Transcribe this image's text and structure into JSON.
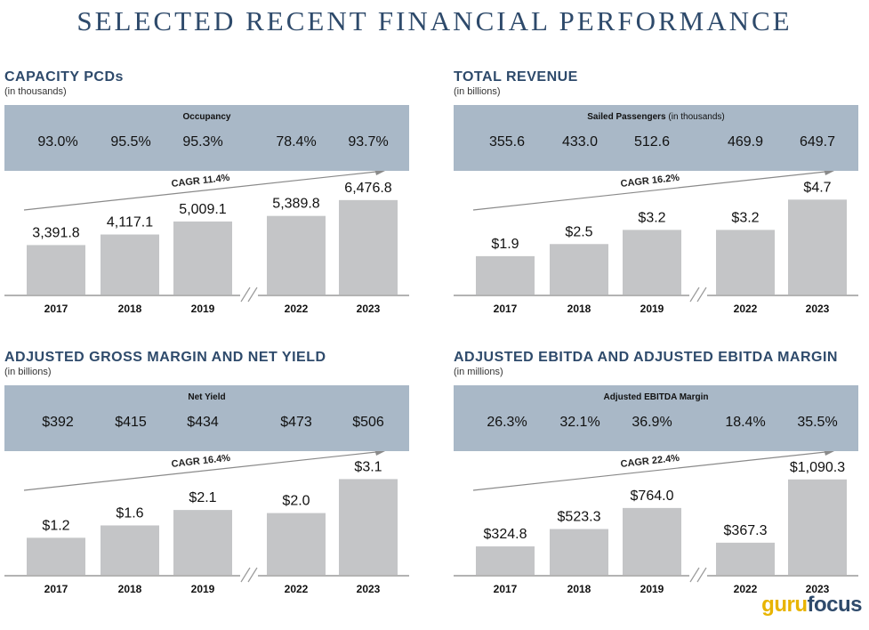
{
  "page": {
    "title": "SELECTED RECENT FINANCIAL PERFORMANCE",
    "watermark_part1": "guru",
    "watermark_part2": "focus"
  },
  "colors": {
    "title": "#2e4a6b",
    "band": "#a9b8c7",
    "bar": "#c4c5c7",
    "arrow": "#8a8a8a"
  },
  "chart_data": [
    {
      "type": "bar",
      "title": "CAPACITY PCDs",
      "subtitle": "(in thousands)",
      "band_title": "Occupancy",
      "band_title_suffix": "",
      "band_values": [
        "93.0%",
        "95.5%",
        "95.3%",
        "78.4%",
        "93.7%"
      ],
      "categories": [
        "2017",
        "2018",
        "2019",
        "2022",
        "2023"
      ],
      "values": [
        3391.8,
        4117.1,
        5009.1,
        5389.8,
        6476.8
      ],
      "labels": [
        "3,391.8",
        "4,117.1",
        "5,009.1",
        "5,389.8",
        "6,476.8"
      ],
      "cagr_label": "CAGR 11.4%",
      "axis_break": "between 2019 and 2022",
      "ylim": [
        0,
        7200
      ]
    },
    {
      "type": "bar",
      "title": "TOTAL REVENUE",
      "subtitle": "(in billions)",
      "band_title": "Sailed Passengers",
      "band_title_suffix": " (in thousands)",
      "band_values": [
        "355.6",
        "433.0",
        "512.6",
        "469.9",
        "649.7"
      ],
      "categories": [
        "2017",
        "2018",
        "2019",
        "2022",
        "2023"
      ],
      "values": [
        1.9,
        2.5,
        3.2,
        3.2,
        4.7
      ],
      "labels": [
        "$1.9",
        "$2.5",
        "$3.2",
        "$3.2",
        "$4.7"
      ],
      "cagr_label": "CAGR 16.2%",
      "axis_break": "between 2019 and 2022",
      "ylim": [
        0,
        5.2
      ]
    },
    {
      "type": "bar",
      "title": "ADJUSTED GROSS MARGIN AND NET YIELD",
      "subtitle": "(in billions)",
      "band_title": "Net Yield",
      "band_title_suffix": "",
      "band_values": [
        "$392",
        "$415",
        "$434",
        "$473",
        "$506"
      ],
      "categories": [
        "2017",
        "2018",
        "2019",
        "2022",
        "2023"
      ],
      "values": [
        1.2,
        1.6,
        2.1,
        2.0,
        3.1
      ],
      "labels": [
        "$1.2",
        "$1.6",
        "$2.1",
        "$2.0",
        "$3.1"
      ],
      "cagr_label": "CAGR 16.4%",
      "axis_break": "between 2019 and 2022",
      "ylim": [
        0,
        3.4
      ]
    },
    {
      "type": "bar",
      "title": "ADJUSTED EBITDA AND ADJUSTED EBITDA MARGIN",
      "subtitle": "(in millions)",
      "band_title": "Adjusted EBITDA Margin",
      "band_title_suffix": "",
      "band_values": [
        "26.3%",
        "32.1%",
        "36.9%",
        "18.4%",
        "35.5%"
      ],
      "categories": [
        "2017",
        "2018",
        "2019",
        "2022",
        "2023"
      ],
      "values": [
        324.8,
        523.3,
        764.0,
        367.3,
        1090.3
      ],
      "labels": [
        "$324.8",
        "$523.3",
        "$764.0",
        "$367.3",
        "$1,090.3"
      ],
      "cagr_label": "CAGR 22.4%",
      "axis_break": "between 2019 and 2022",
      "ylim": [
        0,
        1200
      ]
    }
  ]
}
